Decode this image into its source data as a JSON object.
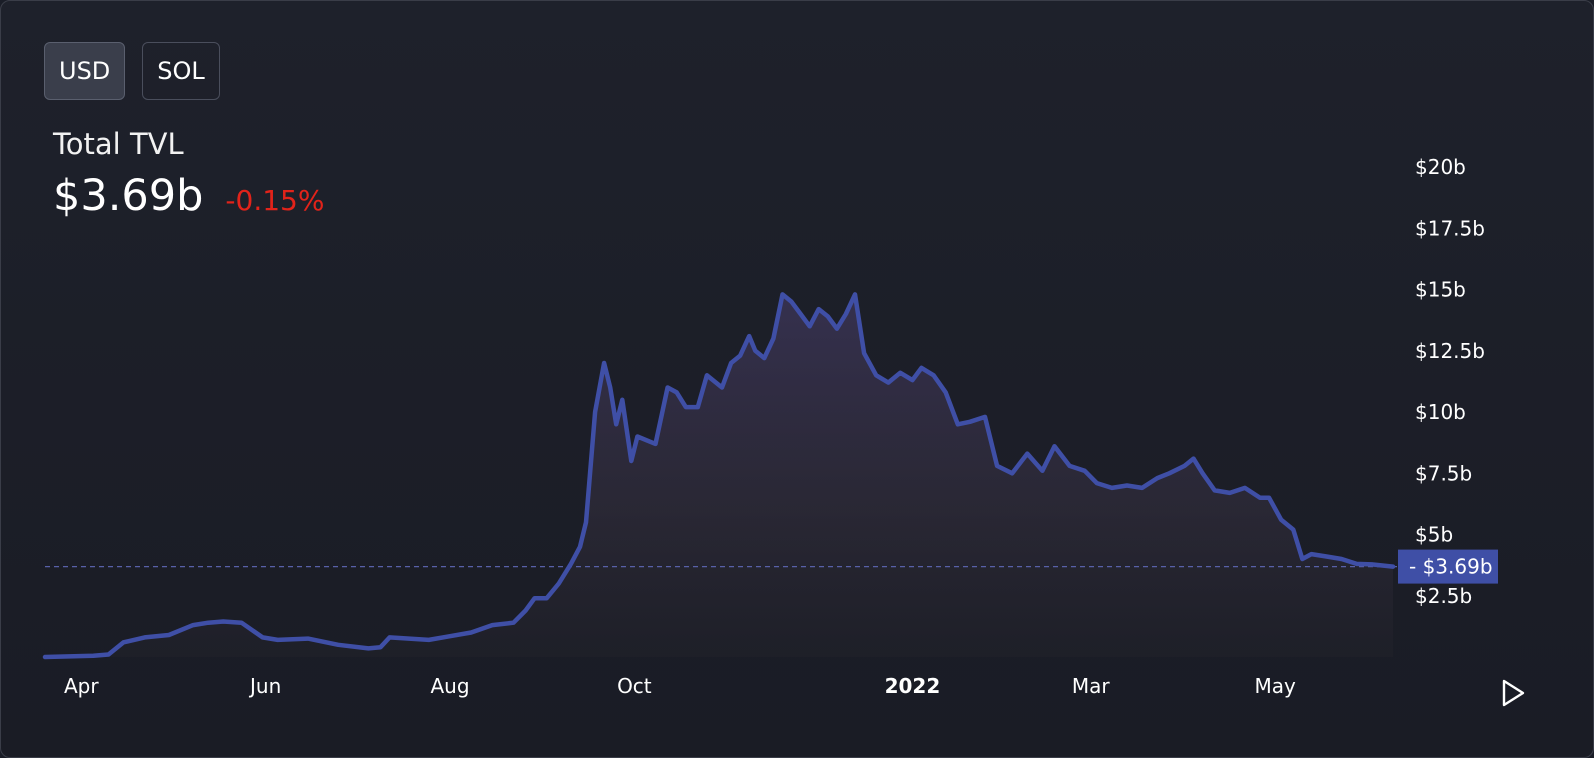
{
  "toggles": [
    {
      "label": "USD",
      "active": true
    },
    {
      "label": "SOL",
      "active": false
    }
  ],
  "header": {
    "title": "Total TVL",
    "value": "$3.69b",
    "change": "-0.15%"
  },
  "colors": {
    "line": "#3f4fa6",
    "negative": "#e2231a",
    "price_label_bg": "#3f4fa6"
  },
  "current_price_label": "$3.69b",
  "play_icon": "play-icon",
  "chart_data": {
    "type": "area",
    "title": "Total TVL",
    "ylim": [
      0,
      20
    ],
    "y_unit": "billions USD",
    "yticks": [
      {
        "v": 2.5,
        "label": "$2.5b"
      },
      {
        "v": 5,
        "label": "$5b"
      },
      {
        "v": 7.5,
        "label": "$7.5b"
      },
      {
        "v": 10,
        "label": "$10b"
      },
      {
        "v": 12.5,
        "label": "$12.5b"
      },
      {
        "v": 15,
        "label": "$15b"
      },
      {
        "v": 17.5,
        "label": "$17.5b"
      },
      {
        "v": 20,
        "label": "$20b"
      }
    ],
    "xticks": [
      {
        "date": "2021-04-01",
        "label": "Apr",
        "bold": false
      },
      {
        "date": "2021-06-01",
        "label": "Jun",
        "bold": false
      },
      {
        "date": "2021-08-01",
        "label": "Aug",
        "bold": false
      },
      {
        "date": "2021-10-01",
        "label": "Oct",
        "bold": false
      },
      {
        "date": "2022-01-01",
        "label": "2022",
        "bold": true
      },
      {
        "date": "2022-03-01",
        "label": "Mar",
        "bold": false
      },
      {
        "date": "2022-05-01",
        "label": "May",
        "bold": false
      }
    ],
    "x_range": [
      "2021-03-20",
      "2022-06-09"
    ],
    "current_value": 3.69,
    "series": [
      {
        "values": [
          [
            "2021-03-20",
            0.0
          ],
          [
            "2021-04-05",
            0.05
          ],
          [
            "2021-04-10",
            0.1
          ],
          [
            "2021-04-15",
            0.6
          ],
          [
            "2021-04-22",
            0.8
          ],
          [
            "2021-04-30",
            0.9
          ],
          [
            "2021-05-08",
            1.3
          ],
          [
            "2021-05-13",
            1.4
          ],
          [
            "2021-05-18",
            1.45
          ],
          [
            "2021-05-24",
            1.4
          ],
          [
            "2021-05-31",
            0.8
          ],
          [
            "2021-06-05",
            0.7
          ],
          [
            "2021-06-15",
            0.75
          ],
          [
            "2021-06-25",
            0.5
          ],
          [
            "2021-07-05",
            0.35
          ],
          [
            "2021-07-09",
            0.4
          ],
          [
            "2021-07-12",
            0.8
          ],
          [
            "2021-07-25",
            0.7
          ],
          [
            "2021-08-01",
            0.85
          ],
          [
            "2021-08-08",
            1.0
          ],
          [
            "2021-08-15",
            1.3
          ],
          [
            "2021-08-22",
            1.4
          ],
          [
            "2021-08-26",
            1.9
          ],
          [
            "2021-08-29",
            2.4
          ],
          [
            "2021-09-02",
            2.4
          ],
          [
            "2021-09-06",
            3.0
          ],
          [
            "2021-09-10",
            3.8
          ],
          [
            "2021-09-13",
            4.5
          ],
          [
            "2021-09-15",
            5.5
          ],
          [
            "2021-09-18",
            10.0
          ],
          [
            "2021-09-21",
            12.0
          ],
          [
            "2021-09-23",
            11.0
          ],
          [
            "2021-09-25",
            9.5
          ],
          [
            "2021-09-27",
            10.5
          ],
          [
            "2021-09-30",
            8.0
          ],
          [
            "2021-10-02",
            9.0
          ],
          [
            "2021-10-08",
            8.7
          ],
          [
            "2021-10-12",
            11.0
          ],
          [
            "2021-10-15",
            10.8
          ],
          [
            "2021-10-18",
            10.2
          ],
          [
            "2021-10-22",
            10.2
          ],
          [
            "2021-10-25",
            11.5
          ],
          [
            "2021-10-30",
            11.0
          ],
          [
            "2021-11-02",
            12.0
          ],
          [
            "2021-11-05",
            12.3
          ],
          [
            "2021-11-08",
            13.1
          ],
          [
            "2021-11-10",
            12.5
          ],
          [
            "2021-11-13",
            12.2
          ],
          [
            "2021-11-16",
            13.0
          ],
          [
            "2021-11-19",
            14.8
          ],
          [
            "2021-11-22",
            14.5
          ],
          [
            "2021-11-25",
            14.0
          ],
          [
            "2021-11-28",
            13.5
          ],
          [
            "2021-12-01",
            14.2
          ],
          [
            "2021-12-04",
            13.9
          ],
          [
            "2021-12-07",
            13.4
          ],
          [
            "2021-12-10",
            14.0
          ],
          [
            "2021-12-13",
            14.8
          ],
          [
            "2021-12-16",
            12.4
          ],
          [
            "2021-12-20",
            11.5
          ],
          [
            "2021-12-24",
            11.2
          ],
          [
            "2021-12-28",
            11.6
          ],
          [
            "2022-01-01",
            11.3
          ],
          [
            "2022-01-04",
            11.8
          ],
          [
            "2022-01-08",
            11.5
          ],
          [
            "2022-01-12",
            10.8
          ],
          [
            "2022-01-16",
            9.5
          ],
          [
            "2022-01-20",
            9.6
          ],
          [
            "2022-01-25",
            9.8
          ],
          [
            "2022-01-29",
            7.8
          ],
          [
            "2022-02-03",
            7.5
          ],
          [
            "2022-02-08",
            8.3
          ],
          [
            "2022-02-13",
            7.6
          ],
          [
            "2022-02-17",
            8.6
          ],
          [
            "2022-02-22",
            7.8
          ],
          [
            "2022-02-27",
            7.6
          ],
          [
            "2022-03-03",
            7.1
          ],
          [
            "2022-03-08",
            6.9
          ],
          [
            "2022-03-13",
            7.0
          ],
          [
            "2022-03-18",
            6.9
          ],
          [
            "2022-03-23",
            7.3
          ],
          [
            "2022-03-27",
            7.5
          ],
          [
            "2022-04-01",
            7.8
          ],
          [
            "2022-04-04",
            8.1
          ],
          [
            "2022-04-07",
            7.5
          ],
          [
            "2022-04-11",
            6.8
          ],
          [
            "2022-04-16",
            6.7
          ],
          [
            "2022-04-21",
            6.9
          ],
          [
            "2022-04-26",
            6.5
          ],
          [
            "2022-04-29",
            6.5
          ],
          [
            "2022-05-03",
            5.6
          ],
          [
            "2022-05-07",
            5.2
          ],
          [
            "2022-05-10",
            4.0
          ],
          [
            "2022-05-13",
            4.2
          ],
          [
            "2022-05-18",
            4.1
          ],
          [
            "2022-05-23",
            4.0
          ],
          [
            "2022-05-28",
            3.8
          ],
          [
            "2022-06-02",
            3.78
          ],
          [
            "2022-06-09",
            3.69
          ]
        ]
      }
    ]
  }
}
